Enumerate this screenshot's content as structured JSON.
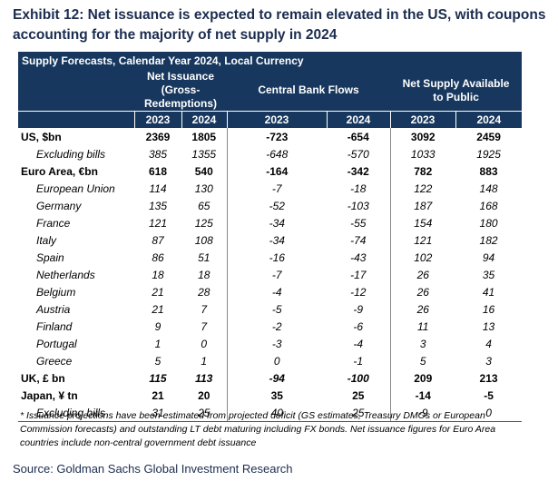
{
  "title": "Exhibit 12: Net issuance is expected to remain elevated in the US, with coupons accounting for the majority of net supply in 2024",
  "table": {
    "caption": "Supply Forecasts, Calendar Year 2024, Local Currency",
    "groups": [
      "Net Issuance (Gross-Redemptions)",
      "Central Bank Flows",
      "Net Supply Available to Public"
    ],
    "years": [
      2023,
      2024,
      2023,
      2024,
      2023,
      2024
    ],
    "rows": [
      {
        "label": "US, $bn",
        "values": [
          2369,
          1805,
          -723,
          -654,
          3092,
          2459
        ]
      },
      {
        "label": "Excluding bills",
        "values": [
          385,
          1355,
          -648,
          -570,
          1033,
          1925
        ]
      },
      {
        "label": "Euro Area, €bn",
        "values": [
          618,
          540,
          -164,
          -342,
          782,
          883
        ]
      },
      {
        "label": "European Union",
        "values": [
          114,
          130,
          -7,
          -18,
          122,
          148
        ]
      },
      {
        "label": "Germany",
        "values": [
          135,
          65,
          -52,
          -103,
          187,
          168
        ]
      },
      {
        "label": "France",
        "values": [
          121,
          125,
          -34,
          -55,
          154,
          180
        ]
      },
      {
        "label": "Italy",
        "values": [
          87,
          108,
          -34,
          -74,
          121,
          182
        ]
      },
      {
        "label": "Spain",
        "values": [
          86,
          51,
          -16,
          -43,
          102,
          94
        ]
      },
      {
        "label": "Netherlands",
        "values": [
          18,
          18,
          -7,
          -17,
          26,
          35
        ]
      },
      {
        "label": "Belgium",
        "values": [
          21,
          28,
          -4,
          -12,
          26,
          41
        ]
      },
      {
        "label": "Austria",
        "values": [
          21,
          7,
          -5,
          -9,
          26,
          16
        ]
      },
      {
        "label": "Finland",
        "values": [
          9,
          7,
          -2,
          -6,
          11,
          13
        ]
      },
      {
        "label": "Portugal",
        "values": [
          1,
          0,
          -3,
          -4,
          3,
          4
        ]
      },
      {
        "label": "Greece",
        "values": [
          5,
          1,
          0,
          -1,
          5,
          3
        ]
      },
      {
        "label": "UK, £ bn",
        "values": [
          115,
          113,
          -94,
          -100,
          209,
          213
        ]
      },
      {
        "label": "Japan, ¥ tn",
        "values": [
          21,
          20,
          35,
          25,
          -14,
          -5
        ]
      },
      {
        "label": "Excluding bills",
        "values": [
          31,
          25,
          40,
          25,
          -9,
          0
        ]
      }
    ]
  },
  "footnote": "* Issuance projections have been estimated from projected deficit (GS estimates, Treasury DMOs or European Commission forecasts) and outstanding LT debt maturing including FX bonds. Net issuance figures for Euro Area countries include non-central government debt issuance",
  "source": "Source: Goldman Sachs Global Investment Research"
}
